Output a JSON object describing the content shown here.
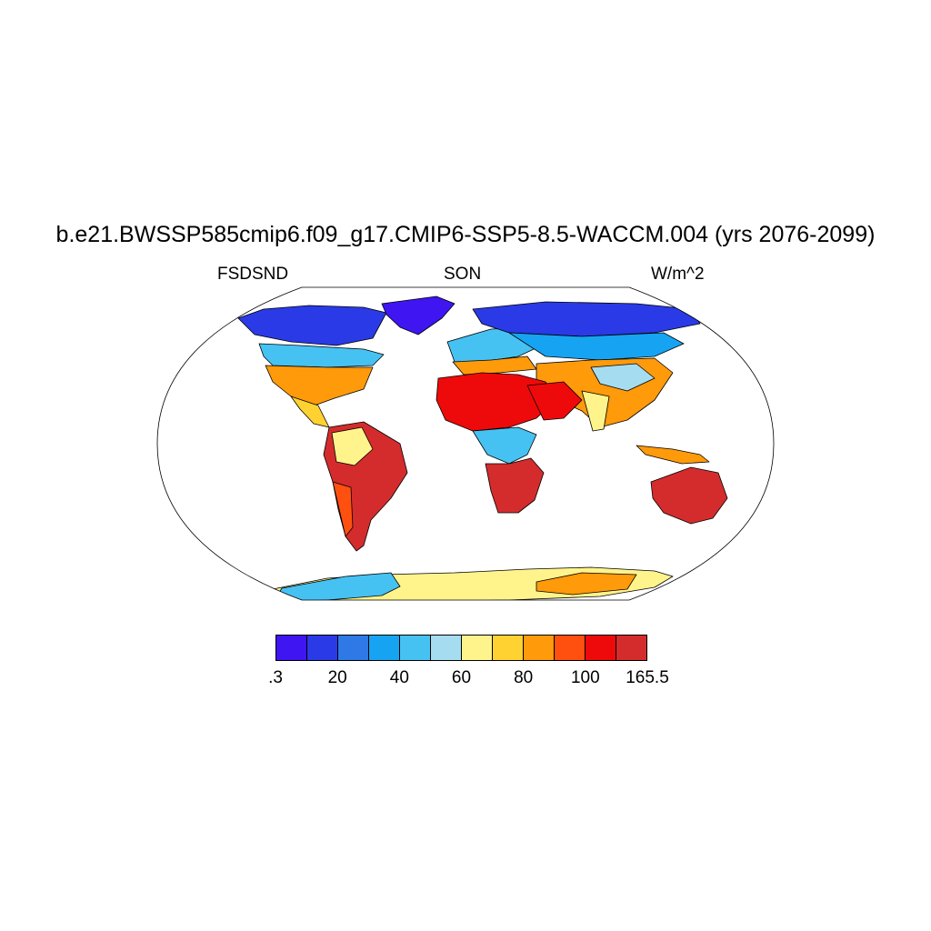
{
  "title": "b.e21.BWSSP585cmip6.f09_g17.CMIP6-SSP5-8.5-WACCM.004 (yrs 2076-2099)",
  "subtitle_left": "FSDSND",
  "subtitle_center": "SON",
  "subtitle_right": "W/m^2",
  "colorbar": {
    "colors": [
      "#3f15f2",
      "#2a3ae6",
      "#2e79e6",
      "#16a4f2",
      "#46c2f2",
      "#a6dcf0",
      "#fff48c",
      "#ffd232",
      "#ff9a0a",
      "#ff5010",
      "#ee0a0a",
      "#d42c2c"
    ],
    "labels": [
      ".3",
      "20",
      "40",
      "60",
      "80",
      "100",
      "165.5"
    ]
  },
  "map": {
    "projection": "robinson",
    "ocean_color": "#ffffff",
    "coastline_color": "#000000"
  }
}
